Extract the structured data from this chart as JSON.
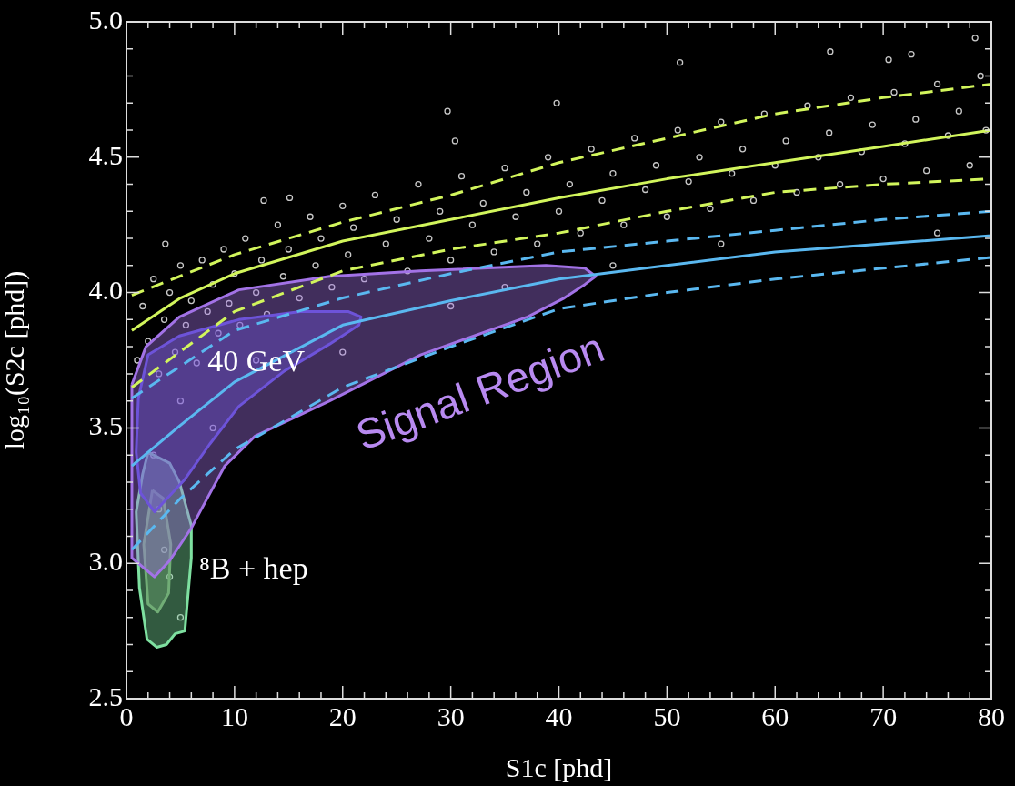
{
  "chart_data": {
    "type": "line",
    "xlabel": "S1c [phd]",
    "ylabel": "log₁₀(S2c [phd])",
    "xlim": [
      0,
      80
    ],
    "ylim": [
      2.5,
      5
    ],
    "xticks": [
      0,
      {
        "value": 2,
        "label": null
      },
      {
        "value": 4,
        "label": null
      },
      {
        "value": 6,
        "label": null
      },
      {
        "value": 8,
        "label": null
      },
      10,
      {
        "value": 12,
        "label": null
      },
      {
        "value": 14,
        "label": null
      },
      {
        "value": 16,
        "label": null
      },
      {
        "value": 18,
        "label": null
      },
      20,
      {
        "value": 22,
        "label": null
      },
      {
        "value": 24,
        "label": null
      },
      {
        "value": 26,
        "label": null
      },
      {
        "value": 28,
        "label": null
      },
      30,
      {
        "value": 32,
        "label": null
      },
      {
        "value": 34,
        "label": null
      },
      {
        "value": 36,
        "label": null
      },
      {
        "value": 38,
        "label": null
      },
      40,
      {
        "value": 42,
        "label": null
      },
      {
        "value": 44,
        "label": null
      },
      {
        "value": 46,
        "label": null
      },
      {
        "value": 48,
        "label": null
      },
      50,
      {
        "value": 52,
        "label": null
      },
      {
        "value": 54,
        "label": null
      },
      {
        "value": 56,
        "label": null
      },
      {
        "value": 58,
        "label": null
      },
      60,
      {
        "value": 62,
        "label": null
      },
      {
        "value": 64,
        "label": null
      },
      {
        "value": 66,
        "label": null
      },
      {
        "value": 68,
        "label": null
      },
      70,
      {
        "value": 72,
        "label": null
      },
      {
        "value": 74,
        "label": null
      },
      {
        "value": 76,
        "label": null
      },
      {
        "value": 78,
        "label": null
      },
      80
    ],
    "yticks": [
      2.5,
      {
        "value": 2.6,
        "label": null
      },
      {
        "value": 2.7,
        "label": null
      },
      {
        "value": 2.8,
        "label": null
      },
      {
        "value": 2.9,
        "label": null
      },
      {
        "value": 3,
        "label": "3.0"
      },
      {
        "value": 3.1,
        "label": null
      },
      {
        "value": 3.2,
        "label": null
      },
      {
        "value": 3.3,
        "label": null
      },
      {
        "value": 3.4,
        "label": null
      },
      3.5,
      {
        "value": 3.6,
        "label": null
      },
      {
        "value": 3.7,
        "label": null
      },
      {
        "value": 3.8,
        "label": null
      },
      {
        "value": 3.9,
        "label": null
      },
      {
        "value": 4,
        "label": "4.0"
      },
      {
        "value": 4.1,
        "label": null
      },
      {
        "value": 4.2,
        "label": null
      },
      {
        "value": 4.3,
        "label": null
      },
      {
        "value": 4.4,
        "label": null
      },
      4.5,
      {
        "value": 4.6,
        "label": null
      },
      {
        "value": 4.7,
        "label": null
      },
      {
        "value": 4.8,
        "label": null
      },
      {
        "value": 4.9,
        "label": null
      },
      {
        "value": 5,
        "label": "5.0"
      }
    ],
    "series": [
      {
        "type": "scatter",
        "marker": "circle",
        "color": "#c8c8c8",
        "x": [
          1,
          1.5,
          2,
          2.5,
          3,
          3.5,
          4,
          4.5,
          5,
          5.5,
          6,
          6.5,
          7,
          7.5,
          8,
          8.5,
          9,
          9.5,
          10,
          10.5,
          11,
          12,
          12.5,
          13,
          14,
          14.5,
          15,
          16,
          17,
          17.5,
          18,
          19,
          20,
          20.5,
          21,
          22,
          23,
          24,
          25,
          26,
          27,
          28,
          29,
          30,
          31,
          32,
          33,
          34,
          35,
          36,
          37,
          38,
          39,
          40,
          41,
          42,
          43,
          44,
          45,
          46,
          47,
          48,
          49,
          50,
          51,
          52,
          53,
          54,
          55,
          56,
          57,
          58,
          59,
          60,
          61,
          62,
          63,
          64,
          65,
          66,
          67,
          68,
          69,
          70,
          71,
          72,
          73,
          74,
          75,
          76,
          77,
          78,
          79,
          79.5,
          51.2,
          65.1,
          78.5,
          72.6,
          70.5,
          29.7,
          39.8,
          30.4,
          3.6,
          12.7,
          15.1,
          5,
          8,
          12,
          20,
          30,
          35,
          3,
          3.5,
          4,
          2.5,
          5,
          45,
          55,
          75
        ],
        "values": [
          3.75,
          3.95,
          3.82,
          4.05,
          3.7,
          3.9,
          4,
          3.78,
          4.1,
          3.88,
          3.97,
          3.74,
          4.12,
          3.93,
          4.03,
          3.85,
          4.16,
          3.96,
          4.07,
          3.88,
          4.2,
          4,
          4.12,
          3.92,
          4.25,
          4.06,
          4.16,
          3.98,
          4.28,
          4.1,
          4.2,
          4.02,
          4.32,
          4.14,
          4.24,
          4.05,
          4.36,
          4.18,
          4.27,
          4.08,
          4.4,
          4.2,
          4.3,
          4.12,
          4.43,
          4.25,
          4.33,
          4.15,
          4.46,
          4.28,
          4.37,
          4.18,
          4.5,
          4.3,
          4.4,
          4.22,
          4.53,
          4.34,
          4.44,
          4.25,
          4.57,
          4.38,
          4.47,
          4.28,
          4.6,
          4.41,
          4.5,
          4.31,
          4.63,
          4.44,
          4.53,
          4.34,
          4.66,
          4.47,
          4.56,
          4.37,
          4.69,
          4.5,
          4.59,
          4.4,
          4.72,
          4.52,
          4.62,
          4.42,
          4.74,
          4.55,
          4.64,
          4.45,
          4.77,
          4.58,
          4.67,
          4.47,
          4.8,
          4.6,
          4.85,
          4.89,
          4.94,
          4.88,
          4.86,
          4.67,
          4.7,
          4.56,
          4.18,
          4.34,
          4.35,
          3.6,
          3.5,
          3.75,
          3.78,
          3.95,
          4.02,
          3.2,
          3.05,
          2.95,
          3.4,
          2.8,
          4.1,
          4.18,
          4.22
        ]
      },
      {
        "color": "#d2f55c",
        "x": [
          0.5,
          5,
          10,
          20,
          30,
          40,
          50,
          60,
          70,
          80
        ],
        "values": [
          3.86,
          3.98,
          4.07,
          4.19,
          4.27,
          4.35,
          4.42,
          4.48,
          4.54,
          4.6
        ]
      },
      {
        "line_style": "dashed",
        "color": "#d2f55c",
        "x": [
          0.5,
          10,
          20,
          30,
          40,
          50,
          60,
          70,
          80
        ],
        "values": [
          3.99,
          4.14,
          4.26,
          4.36,
          4.48,
          4.57,
          4.66,
          4.72,
          4.77
        ]
      },
      {
        "line_style": "dashed",
        "color": "#d2f55c",
        "x": [
          0.5,
          10,
          20,
          30,
          40,
          50,
          60,
          70,
          80
        ],
        "values": [
          3.65,
          3.93,
          4.08,
          4.16,
          4.22,
          4.3,
          4.37,
          4.4,
          4.42
        ]
      },
      {
        "color": "#5ab8f0",
        "x": [
          0.5,
          5,
          10,
          20,
          30,
          40,
          50,
          60,
          70,
          80
        ],
        "values": [
          3.36,
          3.51,
          3.67,
          3.88,
          3.97,
          4.05,
          4.1,
          4.15,
          4.18,
          4.21
        ]
      },
      {
        "line_style": "dashed",
        "color": "#5ab8f0",
        "x": [
          0.5,
          10,
          20,
          30,
          40,
          50,
          60,
          70,
          80
        ],
        "values": [
          3.61,
          3.86,
          3.98,
          4.07,
          4.15,
          4.19,
          4.23,
          4.27,
          4.3
        ]
      },
      {
        "line_style": "dashed",
        "color": "#5ab8f0",
        "x": [
          0.5,
          5,
          10,
          20,
          30,
          40,
          50,
          60,
          70,
          80
        ],
        "values": [
          3.05,
          3.24,
          3.42,
          3.65,
          3.8,
          3.94,
          4,
          4.05,
          4.09,
          4.13
        ]
      },
      {
        "type": "area",
        "color": "#a272e6",
        "x": [
          0.5,
          1.8,
          4.9,
          10.4,
          18.8,
          27.2,
          38.8,
          42.4,
          43.4,
          42.4,
          40.5,
          37.1,
          27.2,
          18.8,
          11.9,
          9.1,
          6.8,
          6,
          4,
          2.6,
          0.5,
          0.5
        ],
        "values": [
          3.66,
          3.8,
          3.91,
          4.01,
          4.06,
          4.08,
          4.1,
          4.09,
          4.06,
          4.03,
          3.98,
          3.91,
          3.77,
          3.6,
          3.47,
          3.36,
          3.19,
          3.13,
          3.01,
          2.95,
          3.02,
          3.66
        ]
      },
      {
        "type": "area",
        "color": "#4a3fd0",
        "x": [
          1.1,
          2,
          4.9,
          10.4,
          16.1,
          20.5,
          21.7,
          21.5,
          18.8,
          14.6,
          10.4,
          7.7,
          5.4,
          2.6,
          1.3,
          0.9,
          1.1
        ],
        "values": [
          3.61,
          3.77,
          3.84,
          3.9,
          3.93,
          3.93,
          3.91,
          3.88,
          3.81,
          3.71,
          3.58,
          3.44,
          3.31,
          3.19,
          3.26,
          3.41,
          3.61
        ]
      },
      {
        "type": "area",
        "color": "#7ee0a0",
        "x": [
          2,
          4,
          4.9,
          6,
          6,
          5.4,
          4.5,
          3.7,
          2.8,
          1.9,
          1.2,
          0.9,
          1.5,
          2
        ],
        "values": [
          3.41,
          3.37,
          3.3,
          3.14,
          3.02,
          2.75,
          2.74,
          2.7,
          2.69,
          2.72,
          2.91,
          3.19,
          3.33,
          3.41
        ]
      },
      {
        "type": "area",
        "color": "#6a8a5a",
        "x": [
          2.4,
          3.4,
          4.1,
          3.9,
          2.9,
          2,
          1.6,
          2.4
        ],
        "values": [
          3.27,
          3.24,
          3.07,
          2.89,
          2.82,
          2.85,
          3.07,
          3.27
        ]
      }
    ],
    "annotations": [
      {
        "text": "40 GeV",
        "x": 12,
        "y": 3.74
      },
      "Signal Region",
      "⁸B + hep"
    ]
  }
}
